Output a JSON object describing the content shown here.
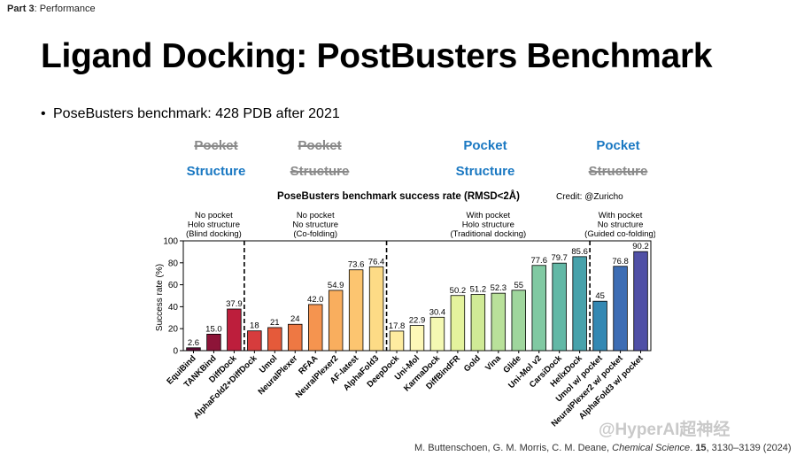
{
  "breadcrumb": {
    "part": "Part 3",
    "section": ": Performance"
  },
  "slide_title": "Ligand Docking: PostBusters Benchmark",
  "bullet": "PoseBusters benchmark: 428 PDB after 2021",
  "condition_headers": [
    {
      "pocket": "Pocket",
      "structure": "Structure",
      "pocket_given": false,
      "structure_given": true
    },
    {
      "pocket": "Pocket",
      "structure": "Structure",
      "pocket_given": false,
      "structure_given": false
    },
    {
      "pocket": "Pocket",
      "structure": "Structure",
      "pocket_given": true,
      "structure_given": true
    },
    {
      "pocket": "Pocket",
      "structure": "Structure",
      "pocket_given": true,
      "structure_given": false
    }
  ],
  "credit": "Credit: @Zuricho",
  "citation": {
    "authors": "M. Buttenschoen, G. M. Morris, C. M. Deane, ",
    "journal": "Chemical Science",
    "rest": ". ",
    "volume": "15",
    "pages": ", 3130–3139 (2024)"
  },
  "watermark": "@HyperAI超神经",
  "chart_data": {
    "type": "bar",
    "title": "PoseBusters benchmark success rate (RMSD<2Å)",
    "ylabel": "Success rate (%)",
    "xlabel": "",
    "ylim": [
      0,
      100
    ],
    "yticks": [
      "0",
      "20",
      "40",
      "60",
      "80",
      "100"
    ],
    "grid": false,
    "categories": [
      "EquiBind",
      "TANKBind",
      "DiffDock",
      "AlphaFold2+DiffDock",
      "Umol",
      "NeuralPlexer",
      "RFAA",
      "NeuralPlexer2",
      "AF-latest",
      "AlphaFold3",
      "DeepDock",
      "Uni-Mol",
      "KarmaDock",
      "DiffBindFR",
      "Gold",
      "Vina",
      "Glide",
      "Uni-Mol v2",
      "CarsiDock",
      "HelixDock",
      "Umol w/ pocket",
      "NeuralPlexer2 w/ pocket",
      "AlphaFold3 w/ pocket"
    ],
    "values": [
      2.6,
      15.0,
      37.9,
      18,
      21,
      24,
      42.0,
      54.9,
      73.6,
      76.4,
      17.8,
      22.9,
      30.4,
      50.2,
      51.2,
      52.3,
      55,
      77.6,
      79.7,
      85.6,
      45,
      76.8,
      90.2
    ],
    "value_labels": [
      "2.6",
      "15.0",
      "37.9",
      "18",
      "21",
      "24",
      "42.0",
      "54.9",
      "73.6",
      "76.4",
      "17.8",
      "22.9",
      "30.4",
      "50.2",
      "51.2",
      "52.3",
      "55",
      "77.6",
      "79.7",
      "85.6",
      "45",
      "76.8",
      "90.2"
    ],
    "colors": [
      "#5c0a32",
      "#8d1438",
      "#bd1e3c",
      "#d63c3d",
      "#e55a3a",
      "#ee7843",
      "#f5944f",
      "#f9ae5e",
      "#fcc570",
      "#fddb86",
      "#feeca0",
      "#fdf8b8",
      "#f4f9b3",
      "#e4f39d",
      "#d0ea96",
      "#b9e19a",
      "#9fd69d",
      "#80c9a2",
      "#62b8a6",
      "#48a2ab",
      "#3388b3",
      "#3d6db4",
      "#5050a6"
    ],
    "groups": [
      {
        "lines": [
          "No pocket",
          "Holo structure",
          "(Blind docking)"
        ],
        "start": 0,
        "end": 2
      },
      {
        "lines": [
          "No pocket",
          "No structure",
          "(Co-folding)"
        ],
        "start": 3,
        "end": 9
      },
      {
        "lines": [
          "With pocket",
          "Holo structure",
          "(Traditional docking)"
        ],
        "start": 10,
        "end": 19
      },
      {
        "lines": [
          "With pocket",
          "No structure",
          "(Guided co-folding)"
        ],
        "start": 20,
        "end": 22
      }
    ]
  }
}
